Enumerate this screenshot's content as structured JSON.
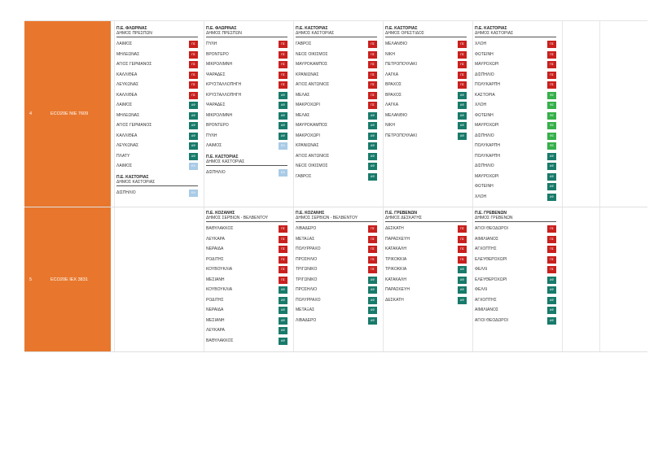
{
  "colors": {
    "accent": "#e8772d",
    "pe": "#c8201e",
    "ad": "#187a6a",
    "ad_light_green": "#35b04a",
    "ad_light_blue": "#a9cbe6"
  },
  "rows": [
    {
      "num": "4",
      "code": "ECO20E NIE 7609",
      "columns": [
        {
          "groups": [
            {
              "title": "Π.Ε. ΦΛΩΡΙΝΑΣ",
              "subtitle": "ΔΗΜΟΣ ΠΡΕΣΠΩΝ",
              "items": [
                {
                  "name": "ΛΑΙΜΟΣ",
                  "badge": "ΠΣ",
                  "type": "pe"
                },
                {
                  "name": "ΜΗΛΕΩΝΑΣ",
                  "badge": "ΠΣ",
                  "type": "pe"
                },
                {
                  "name": "ΑΓΙΟΣ ΓΕΡΜΑΝΟΣ",
                  "badge": "ΠΣ",
                  "type": "pe"
                },
                {
                  "name": "ΚΑΛΛΙΘΕΑ",
                  "badge": "ΠΣ",
                  "type": "pe"
                },
                {
                  "name": "ΛΕΥΚΩΝΑΣ",
                  "badge": "ΠΣ",
                  "type": "pe"
                },
                {
                  "name": "ΚΑΛΛΙΘΕΑ",
                  "badge": "ΠΣ",
                  "type": "pe"
                },
                {
                  "name": "ΛΑΙΜΟΣ",
                  "badge": "ΑΦ",
                  "type": "ad"
                },
                {
                  "name": "ΜΗΛΕΩΝΑΣ",
                  "badge": "ΑΦ",
                  "type": "ad"
                },
                {
                  "name": "ΑΓΙΟΣ ΓΕΡΜΑΝΟΣ",
                  "badge": "ΑΦ",
                  "type": "ad"
                },
                {
                  "name": "ΚΑΛΛΙΘΕΑ",
                  "badge": "ΑΦ",
                  "type": "ad"
                },
                {
                  "name": "ΛΕΥΚΩΝΑΣ",
                  "badge": "ΑΦ",
                  "type": "ad"
                },
                {
                  "name": "ΠΛΑΤΥ",
                  "badge": "ΑΦ",
                  "type": "ad"
                },
                {
                  "name": "ΛΑΙΜΟΣ",
                  "badge": "ΕΛ",
                  "type": "adl"
                }
              ]
            },
            {
              "title": "Π.Ε. ΚΑΣΤΟΡΙΑΣ",
              "subtitle": "ΔΗΜΟΣ ΚΑΣΤΟΡΙΑΣ",
              "items": [
                {
                  "name": "ΔΙΣΠΗΛΙΟ",
                  "badge": "ΕΛ",
                  "type": "adl"
                }
              ]
            }
          ]
        },
        {
          "groups": [
            {
              "title": "Π.Ε. ΦΛΩΡΙΝΑΣ",
              "subtitle": "ΔΗΜΟΣ ΠΡΕΣΠΩΝ",
              "items": [
                {
                  "name": "ΠΥΛΗ",
                  "badge": "ΠΣ",
                  "type": "pe"
                },
                {
                  "name": "ΒΡΟΝΤΕΡΟ",
                  "badge": "ΠΣ",
                  "type": "pe"
                },
                {
                  "name": "ΜΙΚΡΟΛΙΜΝΗ",
                  "badge": "ΠΣ",
                  "type": "pe"
                },
                {
                  "name": "ΨΑΡΑΔΕΣ",
                  "badge": "ΠΣ",
                  "type": "pe"
                },
                {
                  "name": "ΚΡΥΣΤΑΛΛΟΠΗΓΗ",
                  "badge": "ΠΣ",
                  "type": "pe"
                },
                {
                  "name": "ΚΡΥΣΤΑΛΛΟΠΗΓΗ",
                  "badge": "ΑΦ",
                  "type": "ad"
                },
                {
                  "name": "ΨΑΡΑΔΕΣ",
                  "badge": "ΑΦ",
                  "type": "ad"
                },
                {
                  "name": "ΜΙΚΡΟΛΙΜΝΗ",
                  "badge": "ΑΦ",
                  "type": "ad"
                },
                {
                  "name": "ΒΡΟΝΤΕΡΟ",
                  "badge": "ΑΦ",
                  "type": "ad"
                },
                {
                  "name": "ΠΥΛΗ",
                  "badge": "ΑΦ",
                  "type": "ad"
                },
                {
                  "name": "ΛΑΙΜΟΣ",
                  "badge": "ΕΛ",
                  "type": "adl"
                }
              ]
            },
            {
              "title": "Π.Ε. ΚΑΣΤΟΡΙΑΣ",
              "subtitle": "ΔΗΜΟΣ ΚΑΣΤΟΡΙΑΣ",
              "items": [
                {
                  "name": "ΔΙΣΠΗΛΙΟ",
                  "badge": "ΕΛ",
                  "type": "adl"
                }
              ]
            }
          ]
        },
        {
          "groups": [
            {
              "title": "Π.Ε. ΚΑΣΤΟΡΙΑΣ",
              "subtitle": "ΔΗΜΟΣ ΚΑΣΤΟΡΙΑΣ",
              "items": [
                {
                  "name": "ΓΑΒΡΟΣ",
                  "badge": "ΠΣ",
                  "type": "pe"
                },
                {
                  "name": "ΝΕΟΣ ΟΙΚΙΣΜΟΣ",
                  "badge": "ΠΣ",
                  "type": "pe"
                },
                {
                  "name": "ΜΑΥΡΟΚΑΜΠΟΣ",
                  "badge": "ΠΣ",
                  "type": "pe"
                },
                {
                  "name": "ΚΡΑΝΙΩΝΑΣ",
                  "badge": "ΠΣ",
                  "type": "pe"
                },
                {
                  "name": "ΑΓΙΟΣ ΑΝΤΩΝΙΟΣ",
                  "badge": "ΠΣ",
                  "type": "pe"
                },
                {
                  "name": "ΜΕΛΑΣ",
                  "badge": "ΠΣ",
                  "type": "pe"
                },
                {
                  "name": "ΜΑΚΡΟΧΩΡΙ",
                  "badge": "ΠΣ",
                  "type": "pe"
                },
                {
                  "name": "ΜΕΛΑΣ",
                  "badge": "ΑΦ",
                  "type": "ad"
                },
                {
                  "name": "ΜΑΥΡΟΚΑΜΠΟΣ",
                  "badge": "ΑΦ",
                  "type": "ad"
                },
                {
                  "name": "ΜΑΚΡΟΧΩΡΙ",
                  "badge": "ΑΦ",
                  "type": "ad"
                },
                {
                  "name": "ΚΡΑΝΙΩΝΑΣ",
                  "badge": "ΑΦ",
                  "type": "ad"
                },
                {
                  "name": "ΑΓΙΟΣ ΑΝΤΩΝΙΟΣ",
                  "badge": "ΑΦ",
                  "type": "ad"
                },
                {
                  "name": "ΝΕΟΣ ΟΙΚΙΣΜΟΣ",
                  "badge": "ΑΦ",
                  "type": "ad"
                },
                {
                  "name": "ΓΑΒΡΟΣ",
                  "badge": "ΑΦ",
                  "type": "ad"
                }
              ]
            }
          ]
        },
        {
          "groups": [
            {
              "title": "Π.Ε. ΚΑΣΤΟΡΙΑΣ",
              "subtitle": "ΔΗΜΟΣ ΟΡΕΣΤΙΔΟΣ",
              "items": [
                {
                  "name": "ΜΕΛΑΝΘΙΟ",
                  "badge": "ΠΣ",
                  "type": "pe"
                },
                {
                  "name": "ΝΙΚΗ",
                  "badge": "ΠΣ",
                  "type": "pe"
                },
                {
                  "name": "ΠΕΤΡΟΠΟΥΛΑΚΙ",
                  "badge": "ΠΣ",
                  "type": "pe"
                },
                {
                  "name": "ΛΑΓΚΑ",
                  "badge": "ΠΣ",
                  "type": "pe"
                },
                {
                  "name": "ΒΡΑΧΟΣ",
                  "badge": "ΠΣ",
                  "type": "pe"
                },
                {
                  "name": "ΒΡΑΧΟΣ",
                  "badge": "ΑΦ",
                  "type": "ad"
                },
                {
                  "name": "ΛΑΓΚΑ",
                  "badge": "ΑΦ",
                  "type": "ad"
                },
                {
                  "name": "ΜΕΛΑΝΘΙΟ",
                  "badge": "ΑΦ",
                  "type": "ad"
                },
                {
                  "name": "ΝΙΚΗ",
                  "badge": "ΑΦ",
                  "type": "ad"
                },
                {
                  "name": "ΠΕΤΡΟΠΟΥΛΑΚΙ",
                  "badge": "ΑΦ",
                  "type": "ad"
                }
              ]
            }
          ]
        },
        {
          "groups": [
            {
              "title": "Π.Ε. ΚΑΣΤΟΡΙΑΣ",
              "subtitle": "ΔΗΜΟΣ ΚΑΣΤΟΡΙΑΣ",
              "items": [
                {
                  "name": "ΧΛΟΗ",
                  "badge": "ΠΣ",
                  "type": "pe"
                },
                {
                  "name": "ΦΩΤΕΙΝΗ",
                  "badge": "ΠΣ",
                  "type": "pe"
                },
                {
                  "name": "ΜΑΥΡΟΧΩΡΙ",
                  "badge": "ΠΣ",
                  "type": "pe"
                },
                {
                  "name": "ΔΙΣΠΗΛΙΟ",
                  "badge": "ΠΣ",
                  "type": "pe"
                },
                {
                  "name": "ΠΟΛΥΚΑΡΠΗ",
                  "badge": "ΠΣ",
                  "type": "pe"
                },
                {
                  "name": "ΚΑΣΤΟΡΙΑ",
                  "badge": "ΦΣ",
                  "type": "adg"
                },
                {
                  "name": "ΧΛΟΗ",
                  "badge": "ΦΣ",
                  "type": "adg"
                },
                {
                  "name": "ΦΩΤΕΙΝΗ",
                  "badge": "ΦΣ",
                  "type": "adg"
                },
                {
                  "name": "ΜΑΥΡΟΧΩΡΙ",
                  "badge": "ΦΣ",
                  "type": "adg"
                },
                {
                  "name": "ΔΙΣΠΗΛΙΟ",
                  "badge": "ΦΣ",
                  "type": "adg"
                },
                {
                  "name": "ΠΟΛΥΚΑΡΠΗ",
                  "badge": "ΦΣ",
                  "type": "adg"
                },
                {
                  "name": "ΠΟΛΥΚΑΡΠΗ",
                  "badge": "ΑΦ",
                  "type": "ad"
                },
                {
                  "name": "ΔΙΣΠΗΛΙΟ",
                  "badge": "ΑΦ",
                  "type": "ad"
                },
                {
                  "name": "ΜΑΥΡΟΧΩΡΙ",
                  "badge": "ΑΦ",
                  "type": "ad"
                },
                {
                  "name": "ΦΩΤΕΙΝΗ",
                  "badge": "ΑΦ",
                  "type": "ad"
                },
                {
                  "name": "ΧΛΟΗ",
                  "badge": "ΑΦ",
                  "type": "ad"
                }
              ]
            }
          ]
        }
      ]
    },
    {
      "num": "5",
      "code": "ECO20E IEX 3831",
      "columns": [
        {
          "groups": []
        },
        {
          "groups": [
            {
              "title": "Π.Ε. ΚΟΖΑΝΗΣ",
              "subtitle": "ΔΗΜΟΣ ΣΕΡΒΙΩΝ - ΒΕΛΒΕΝΤΟΥ",
              "items": [
                {
                  "name": "ΒΑΘΥΛΑΚΚΟΣ",
                  "badge": "ΠΣ",
                  "type": "pe"
                },
                {
                  "name": "ΛΕΥΚΑΡΑ",
                  "badge": "ΠΣ",
                  "type": "pe"
                },
                {
                  "name": "ΝΕΡΑΙΔΑ",
                  "badge": "ΠΣ",
                  "type": "pe"
                },
                {
                  "name": "ΡΟΔΙΤΗΣ",
                  "badge": "ΠΣ",
                  "type": "pe"
                },
                {
                  "name": "ΚΟΥΒΟΥΚΛΙΑ",
                  "badge": "ΠΣ",
                  "type": "pe"
                },
                {
                  "name": "ΜΕΣΙΑΝΗ",
                  "badge": "ΠΣ",
                  "type": "pe"
                },
                {
                  "name": "ΚΟΥΒΟΥΚΛΙΑ",
                  "badge": "ΑΦ",
                  "type": "ad"
                },
                {
                  "name": "ΡΟΔΙΤΗΣ",
                  "badge": "ΑΦ",
                  "type": "ad"
                },
                {
                  "name": "ΝΕΡΑΙΔΑ",
                  "badge": "ΑΦ",
                  "type": "ad"
                },
                {
                  "name": "ΜΕΣΙΑΝΗ",
                  "badge": "ΑΦ",
                  "type": "ad"
                },
                {
                  "name": "ΛΕΥΚΑΡΑ",
                  "badge": "ΑΦ",
                  "type": "ad"
                },
                {
                  "name": "ΒΑΘΥΛΑΚΚΟΣ",
                  "badge": "ΑΦ",
                  "type": "ad"
                }
              ]
            }
          ]
        },
        {
          "groups": [
            {
              "title": "Π.Ε. ΚΟΖΑΝΗΣ",
              "subtitle": "ΔΗΜΟΣ ΣΕΡΒΙΩΝ - ΒΕΛΒΕΝΤΟΥ",
              "items": [
                {
                  "name": "ΛΙΒΑΔΕΡΟ",
                  "badge": "ΠΣ",
                  "type": "pe"
                },
                {
                  "name": "ΜΕΤΑΞΑΣ",
                  "badge": "ΠΣ",
                  "type": "pe"
                },
                {
                  "name": "ΠΟΛΥΡΡΑΧΟ",
                  "badge": "ΠΣ",
                  "type": "pe"
                },
                {
                  "name": "ΠΡΟΣΗΛΙΟ",
                  "badge": "ΠΣ",
                  "type": "pe"
                },
                {
                  "name": "ΤΡΙΓΩΝΙΚΟ",
                  "badge": "ΠΣ",
                  "type": "pe"
                },
                {
                  "name": "ΤΡΙΓΩΝΙΚΟ",
                  "badge": "ΑΦ",
                  "type": "ad"
                },
                {
                  "name": "ΠΡΟΣΗΛΙΟ",
                  "badge": "ΑΦ",
                  "type": "ad"
                },
                {
                  "name": "ΠΟΛΥΡΡΑΧΟ",
                  "badge": "ΑΦ",
                  "type": "ad"
                },
                {
                  "name": "ΜΕΤΑΞΑΣ",
                  "badge": "ΑΦ",
                  "type": "ad"
                },
                {
                  "name": "ΛΙΒΑΔΕΡΟ",
                  "badge": "ΑΦ",
                  "type": "ad"
                }
              ]
            }
          ]
        },
        {
          "groups": [
            {
              "title": "Π.Ε. ΓΡΕΒΕΝΩΝ",
              "subtitle": "ΔΗΜΟΣ ΔΕΣΚΑΤΗΣ",
              "items": [
                {
                  "name": "ΔΕΣΚΑΤΗ",
                  "badge": "ΠΣ",
                  "type": "pe"
                },
                {
                  "name": "ΠΑΡΑΣΚΕΥΗ",
                  "badge": "ΠΣ",
                  "type": "pe"
                },
                {
                  "name": "ΚΑΤΑΚΑΛΗ",
                  "badge": "ΠΣ",
                  "type": "pe"
                },
                {
                  "name": "ΤΡΙΚΟΚΚΙΑ",
                  "badge": "ΠΣ",
                  "type": "pe"
                },
                {
                  "name": "ΤΡΙΚΟΚΚΙΑ",
                  "badge": "ΑΦ",
                  "type": "ad"
                },
                {
                  "name": "ΚΑΤΑΚΑΛΗ",
                  "badge": "ΑΦ",
                  "type": "ad"
                },
                {
                  "name": "ΠΑΡΑΣΚΕΥΗ",
                  "badge": "ΑΦ",
                  "type": "ad"
                },
                {
                  "name": "ΔΕΣΚΑΤΗ",
                  "badge": "ΑΦ",
                  "type": "ad"
                }
              ]
            }
          ]
        },
        {
          "groups": [
            {
              "title": "Π.Ε. ΓΡΕΒΕΝΩΝ",
              "subtitle": "ΔΗΜΟΣ ΓΡΕΒΕΝΩΝ",
              "items": [
                {
                  "name": "ΑΓΙΟΙ ΘΕΟΔΩΡΟΙ",
                  "badge": "ΠΣ",
                  "type": "pe"
                },
                {
                  "name": "ΑΙΜΙΛΙΑΝΟΣ",
                  "badge": "ΠΣ",
                  "type": "pe"
                },
                {
                  "name": "ΑΓΧΟΠΤΗΣ",
                  "badge": "ΠΣ",
                  "type": "pe"
                },
                {
                  "name": "ΕΛΕΥΘΕΡΟΧΩΡΙ",
                  "badge": "ΠΣ",
                  "type": "pe"
                },
                {
                  "name": "ΦΕΛΛΙ",
                  "badge": "ΠΣ",
                  "type": "pe"
                },
                {
                  "name": "ΕΛΕΥΘΕΡΟΧΩΡΙ",
                  "badge": "ΑΦ",
                  "type": "ad"
                },
                {
                  "name": "ΦΕΛΛΙ",
                  "badge": "ΑΦ",
                  "type": "ad"
                },
                {
                  "name": "ΑΓΧΟΠΤΗΣ",
                  "badge": "ΑΦ",
                  "type": "ad"
                },
                {
                  "name": "ΑΙΜΙΛΙΑΝΟΣ",
                  "badge": "ΑΦ",
                  "type": "ad"
                },
                {
                  "name": "ΑΓΙΟΙ ΘΕΟΔΩΡΟΙ",
                  "badge": "ΑΦ",
                  "type": "ad"
                }
              ]
            }
          ]
        }
      ]
    }
  ]
}
